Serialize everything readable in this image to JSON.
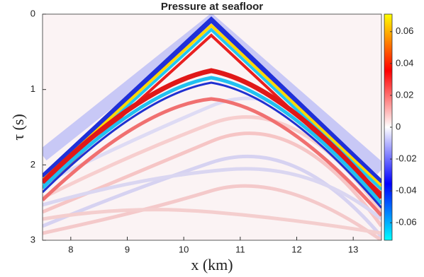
{
  "chart_data": {
    "type": "image",
    "title": "Pressure at seafloor",
    "xlabel": "x (km)",
    "ylabel": "τ (s)",
    "xlim": [
      7.5,
      13.5
    ],
    "xticks": [
      8,
      9,
      10,
      11,
      12,
      13
    ],
    "ylim": [
      0,
      3
    ],
    "yticks": [
      0,
      1,
      2,
      3
    ],
    "y_reversed": true,
    "clim": [
      -0.071,
      0.071
    ],
    "cticks": [
      0.06,
      0.04,
      0.02,
      0,
      -0.02,
      -0.04,
      -0.06
    ],
    "colormap": [
      "#00ffff",
      "#0000ff",
      "#ffffff",
      "#ff0000",
      "#ffff00"
    ]
  }
}
